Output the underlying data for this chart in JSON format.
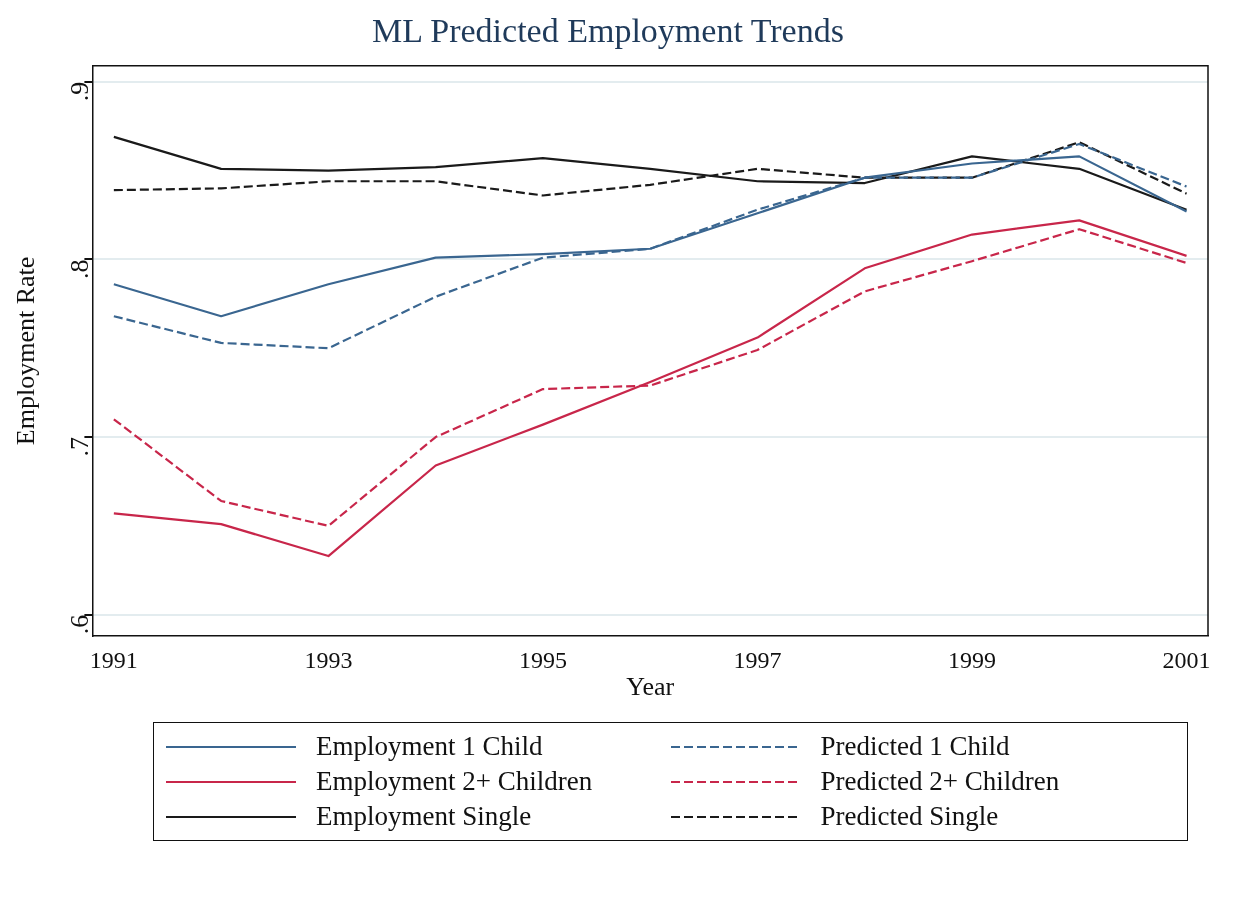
{
  "chart_data": {
    "type": "line",
    "title": "ML Predicted Employment Trends",
    "xlabel": "Year",
    "ylabel": "Employment Rate",
    "x": [
      1991,
      1992,
      1993,
      1994,
      1995,
      1996,
      1997,
      1998,
      1999,
      2000,
      2001
    ],
    "xlim": [
      1990.8,
      2001.2
    ],
    "xticks": [
      1991,
      1993,
      1995,
      1997,
      1999,
      2001
    ],
    "ylim": [
      0.588,
      0.909
    ],
    "yticks": [
      {
        "value": 0.6,
        "label": ".6"
      },
      {
        "value": 0.7,
        "label": ".7"
      },
      {
        "value": 0.8,
        "label": ".8"
      },
      {
        "value": 0.9,
        "label": ".9"
      }
    ],
    "grid": "y",
    "legend": "bottom",
    "marker": "none",
    "series": [
      {
        "name": "Employment 1 Child",
        "color": "#3a6690",
        "line_style": "solid",
        "values": [
          0.786,
          0.768,
          0.786,
          0.801,
          0.803,
          0.806,
          0.826,
          0.846,
          0.854,
          0.858,
          0.827
        ]
      },
      {
        "name": "Predicted 1 Child",
        "color": "#3a6690",
        "line_style": "dashed",
        "values": [
          0.768,
          0.753,
          0.75,
          0.779,
          0.801,
          0.806,
          0.828,
          0.846,
          0.846,
          0.865,
          0.841
        ]
      },
      {
        "name": "Employment 2+ Children",
        "color": "#c8264a",
        "line_style": "solid",
        "values": [
          0.657,
          0.651,
          0.633,
          0.684,
          0.707,
          0.731,
          0.756,
          0.795,
          0.814,
          0.822,
          0.802
        ]
      },
      {
        "name": "Predicted 2+ Children",
        "color": "#c8264a",
        "line_style": "dashed",
        "values": [
          0.71,
          0.664,
          0.65,
          0.7,
          0.727,
          0.729,
          0.749,
          0.782,
          0.799,
          0.817,
          0.798
        ]
      },
      {
        "name": "Employment Single",
        "color": "#1a1a1a",
        "line_style": "solid",
        "values": [
          0.869,
          0.851,
          0.85,
          0.852,
          0.857,
          0.851,
          0.844,
          0.843,
          0.858,
          0.851,
          0.828
        ]
      },
      {
        "name": "Predicted Single",
        "color": "#1a1a1a",
        "line_style": "dashed",
        "values": [
          0.839,
          0.84,
          0.844,
          0.844,
          0.836,
          0.842,
          0.851,
          0.846,
          0.846,
          0.866,
          0.837
        ]
      }
    ]
  }
}
